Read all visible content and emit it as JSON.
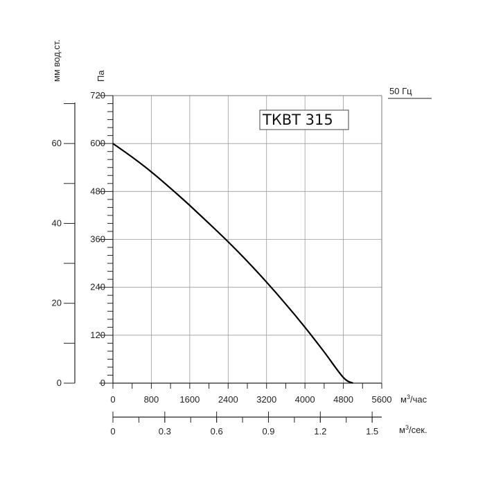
{
  "chart_data": {
    "type": "line",
    "label": "ТКВТ 315",
    "frequency_label": "50 Гц",
    "pa_axis": {
      "unit": "Па",
      "min": 0,
      "max": 720,
      "ticks": [
        "0",
        "120",
        "240",
        "360",
        "480",
        "600",
        "720"
      ]
    },
    "mm_axis": {
      "unit": "мм вод.ст.",
      "min": 0,
      "max": 72,
      "ticks": [
        "0",
        "20",
        "40",
        "60"
      ]
    },
    "x_axis_hour": {
      "unit": "м³/час",
      "min": 0,
      "max": 5600,
      "ticks": [
        "0",
        "800",
        "1600",
        "2400",
        "3200",
        "4000",
        "4800",
        "5600"
      ]
    },
    "x_axis_sec": {
      "unit": "м³/сек.",
      "min": 0,
      "max": 1.5556,
      "ticks": [
        "0",
        "0.3",
        "0.6",
        "0.9",
        "1.2",
        "1.5"
      ]
    },
    "grid": true,
    "series": [
      {
        "x": [
          0,
          400,
          800,
          1200,
          1600,
          2000,
          2400,
          2800,
          3200,
          3600,
          4000,
          4400,
          4800,
          5000
        ],
        "y": [
          600,
          566,
          529,
          488,
          445,
          400,
          354,
          305,
          253,
          198,
          140,
          78,
          14,
          0
        ]
      }
    ]
  }
}
